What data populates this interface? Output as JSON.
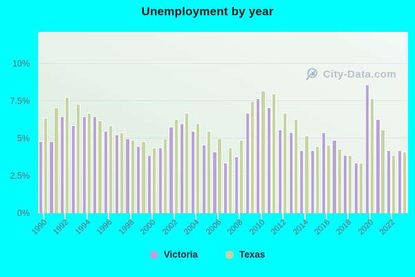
{
  "title": "Unemployment by year",
  "watermark": {
    "text": "City-Data.com"
  },
  "colors": {
    "page_background": "#00ffff",
    "victoria_bar": "#b7a3d8",
    "texas_bar": "#c5d4a0",
    "plot_gradient_start": "#d7ecd9",
    "plot_gradient_end": "#f3f8f6",
    "gridline": "#e4d8e4",
    "axis_text": "#5c6a72"
  },
  "y_axis": {
    "labels": [
      "0%",
      "2.5%",
      "5%",
      "7.5%",
      "10%"
    ],
    "values": [
      0,
      2.5,
      5,
      7.5,
      10
    ]
  },
  "x_axis": {
    "tick_labels": [
      "1990",
      "1992",
      "1994",
      "1996",
      "1998",
      "2000",
      "2002",
      "2004",
      "2006",
      "2008",
      "2010",
      "2012",
      "2014",
      "2016",
      "2018",
      "2020",
      "2022"
    ],
    "tick_interval": 2
  },
  "legend": {
    "items": [
      {
        "label": "Victoria"
      },
      {
        "label": "Texas"
      }
    ]
  },
  "chart_data": {
    "type": "bar",
    "title": "Unemployment by year",
    "categories": [
      1990,
      1991,
      1992,
      1993,
      1994,
      1995,
      1996,
      1997,
      1998,
      1999,
      2000,
      2001,
      2002,
      2003,
      2004,
      2005,
      2006,
      2007,
      2008,
      2009,
      2010,
      2011,
      2012,
      2013,
      2014,
      2015,
      2016,
      2017,
      2018,
      2019,
      2020,
      2021,
      2022,
      2023
    ],
    "series": [
      {
        "name": "Victoria",
        "color": "#b7a3d8",
        "values": [
          4.8,
          4.8,
          6.5,
          5.9,
          6.5,
          6.5,
          5.5,
          5.3,
          5.0,
          4.5,
          3.9,
          4.4,
          5.8,
          6.0,
          5.5,
          4.6,
          4.1,
          3.4,
          3.8,
          6.7,
          7.7,
          7.1,
          5.6,
          5.4,
          4.2,
          4.2,
          5.4,
          4.9,
          3.9,
          3.4,
          8.6,
          6.3,
          4.2,
          4.2
        ]
      },
      {
        "name": "Texas",
        "color": "#c5d4a0",
        "values": [
          6.4,
          7.1,
          7.8,
          7.3,
          6.7,
          6.2,
          5.9,
          5.4,
          4.9,
          4.8,
          4.4,
          5.0,
          6.3,
          6.7,
          6.0,
          5.5,
          5.0,
          4.4,
          4.9,
          7.5,
          8.2,
          8.0,
          6.7,
          6.3,
          5.2,
          4.5,
          4.6,
          4.3,
          3.9,
          3.4,
          7.7,
          5.6,
          3.9,
          4.1
        ]
      }
    ],
    "value_unit": "%",
    "ylim": [
      0,
      12
    ],
    "grid": true,
    "legend_position": "bottom"
  }
}
